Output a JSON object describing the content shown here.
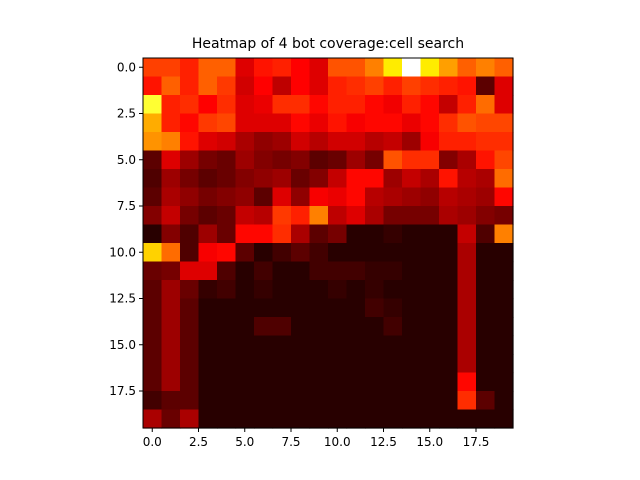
{
  "chart_data": {
    "type": "heatmap",
    "title": "Heatmap of 4 bot coverage:cell search",
    "xlabel": "",
    "ylabel": "",
    "colormap": "hot",
    "rows": 20,
    "cols": 20,
    "xlim": [
      -0.5,
      19.5
    ],
    "ylim": [
      19.5,
      -0.5
    ],
    "x_ticks": [
      0.0,
      2.5,
      5.0,
      7.5,
      10.0,
      12.5,
      15.0,
      17.5
    ],
    "y_ticks": [
      0.0,
      2.5,
      5.0,
      7.5,
      10.0,
      12.5,
      15.0,
      17.5
    ],
    "x_tick_labels": [
      "0.0",
      "2.5",
      "5.0",
      "7.5",
      "10.0",
      "12.5",
      "15.0",
      "17.5"
    ],
    "y_tick_labels": [
      "0.0",
      "2.5",
      "5.0",
      "7.5",
      "10.0",
      "12.5",
      "15.0",
      "17.5"
    ],
    "grid": false,
    "values_scale": "relative intensity 0-1",
    "values": [
      [
        0.45,
        0.45,
        0.4,
        0.5,
        0.5,
        0.3,
        0.38,
        0.4,
        0.35,
        0.3,
        0.48,
        0.48,
        0.55,
        0.72,
        1.0,
        0.72,
        0.6,
        0.5,
        0.55,
        0.5
      ],
      [
        0.38,
        0.5,
        0.4,
        0.5,
        0.44,
        0.28,
        0.35,
        0.25,
        0.35,
        0.3,
        0.4,
        0.42,
        0.45,
        0.4,
        0.45,
        0.42,
        0.4,
        0.38,
        0.1,
        0.3
      ],
      [
        0.8,
        0.4,
        0.42,
        0.35,
        0.42,
        0.3,
        0.32,
        0.42,
        0.42,
        0.36,
        0.4,
        0.4,
        0.36,
        0.33,
        0.4,
        0.36,
        0.26,
        0.4,
        0.52,
        0.3
      ],
      [
        0.62,
        0.4,
        0.36,
        0.44,
        0.46,
        0.3,
        0.3,
        0.3,
        0.36,
        0.32,
        0.38,
        0.34,
        0.36,
        0.36,
        0.32,
        0.36,
        0.42,
        0.48,
        0.46,
        0.46
      ],
      [
        0.58,
        0.55,
        0.38,
        0.3,
        0.28,
        0.22,
        0.18,
        0.2,
        0.28,
        0.24,
        0.28,
        0.28,
        0.24,
        0.26,
        0.2,
        0.34,
        0.4,
        0.4,
        0.42,
        0.42
      ],
      [
        0.1,
        0.3,
        0.2,
        0.14,
        0.12,
        0.2,
        0.16,
        0.14,
        0.16,
        0.1,
        0.12,
        0.2,
        0.14,
        0.48,
        0.42,
        0.42,
        0.16,
        0.22,
        0.38,
        0.46
      ],
      [
        0.08,
        0.2,
        0.14,
        0.1,
        0.12,
        0.16,
        0.18,
        0.2,
        0.12,
        0.16,
        0.26,
        0.36,
        0.36,
        0.2,
        0.26,
        0.22,
        0.38,
        0.24,
        0.22,
        0.52
      ],
      [
        0.1,
        0.22,
        0.18,
        0.14,
        0.16,
        0.18,
        0.1,
        0.3,
        0.18,
        0.34,
        0.32,
        0.36,
        0.24,
        0.22,
        0.2,
        0.18,
        0.24,
        0.22,
        0.2,
        0.36
      ],
      [
        0.16,
        0.26,
        0.14,
        0.1,
        0.12,
        0.26,
        0.24,
        0.44,
        0.4,
        0.55,
        0.25,
        0.3,
        0.22,
        0.14,
        0.14,
        0.14,
        0.22,
        0.2,
        0.16,
        0.14
      ],
      [
        0.02,
        0.16,
        0.08,
        0.2,
        0.12,
        0.36,
        0.36,
        0.42,
        0.22,
        0.1,
        0.14,
        0.02,
        0.02,
        0.04,
        0.02,
        0.02,
        0.02,
        0.26,
        0.08,
        0.55
      ],
      [
        0.68,
        0.52,
        0.08,
        0.34,
        0.36,
        0.1,
        0.02,
        0.06,
        0.1,
        0.06,
        0.02,
        0.02,
        0.02,
        0.02,
        0.02,
        0.02,
        0.02,
        0.22,
        0.02,
        0.02
      ],
      [
        0.12,
        0.14,
        0.3,
        0.3,
        0.08,
        0.02,
        0.06,
        0.02,
        0.02,
        0.06,
        0.06,
        0.06,
        0.04,
        0.04,
        0.02,
        0.02,
        0.02,
        0.22,
        0.02,
        0.02
      ],
      [
        0.1,
        0.2,
        0.12,
        0.04,
        0.06,
        0.02,
        0.04,
        0.02,
        0.02,
        0.02,
        0.04,
        0.02,
        0.04,
        0.02,
        0.02,
        0.02,
        0.02,
        0.22,
        0.02,
        0.02
      ],
      [
        0.1,
        0.2,
        0.1,
        0.02,
        0.02,
        0.02,
        0.02,
        0.02,
        0.02,
        0.02,
        0.02,
        0.02,
        0.06,
        0.04,
        0.02,
        0.02,
        0.02,
        0.22,
        0.02,
        0.02
      ],
      [
        0.1,
        0.2,
        0.1,
        0.02,
        0.02,
        0.02,
        0.08,
        0.08,
        0.02,
        0.02,
        0.02,
        0.02,
        0.02,
        0.06,
        0.02,
        0.02,
        0.02,
        0.22,
        0.02,
        0.02
      ],
      [
        0.1,
        0.2,
        0.1,
        0.02,
        0.02,
        0.02,
        0.02,
        0.02,
        0.02,
        0.02,
        0.02,
        0.02,
        0.02,
        0.02,
        0.02,
        0.02,
        0.02,
        0.22,
        0.02,
        0.02
      ],
      [
        0.1,
        0.2,
        0.1,
        0.02,
        0.02,
        0.02,
        0.02,
        0.02,
        0.02,
        0.02,
        0.02,
        0.02,
        0.02,
        0.02,
        0.02,
        0.02,
        0.02,
        0.22,
        0.02,
        0.02
      ],
      [
        0.1,
        0.2,
        0.1,
        0.02,
        0.02,
        0.02,
        0.02,
        0.02,
        0.02,
        0.02,
        0.02,
        0.02,
        0.02,
        0.02,
        0.02,
        0.02,
        0.02,
        0.36,
        0.02,
        0.02
      ],
      [
        0.06,
        0.1,
        0.1,
        0.02,
        0.02,
        0.02,
        0.02,
        0.02,
        0.02,
        0.02,
        0.02,
        0.02,
        0.02,
        0.02,
        0.02,
        0.02,
        0.02,
        0.42,
        0.1,
        0.02
      ],
      [
        0.22,
        0.12,
        0.22,
        0.02,
        0.02,
        0.02,
        0.02,
        0.02,
        0.02,
        0.02,
        0.02,
        0.02,
        0.02,
        0.02,
        0.02,
        0.02,
        0.02,
        0.02,
        0.02,
        0.02
      ]
    ]
  }
}
